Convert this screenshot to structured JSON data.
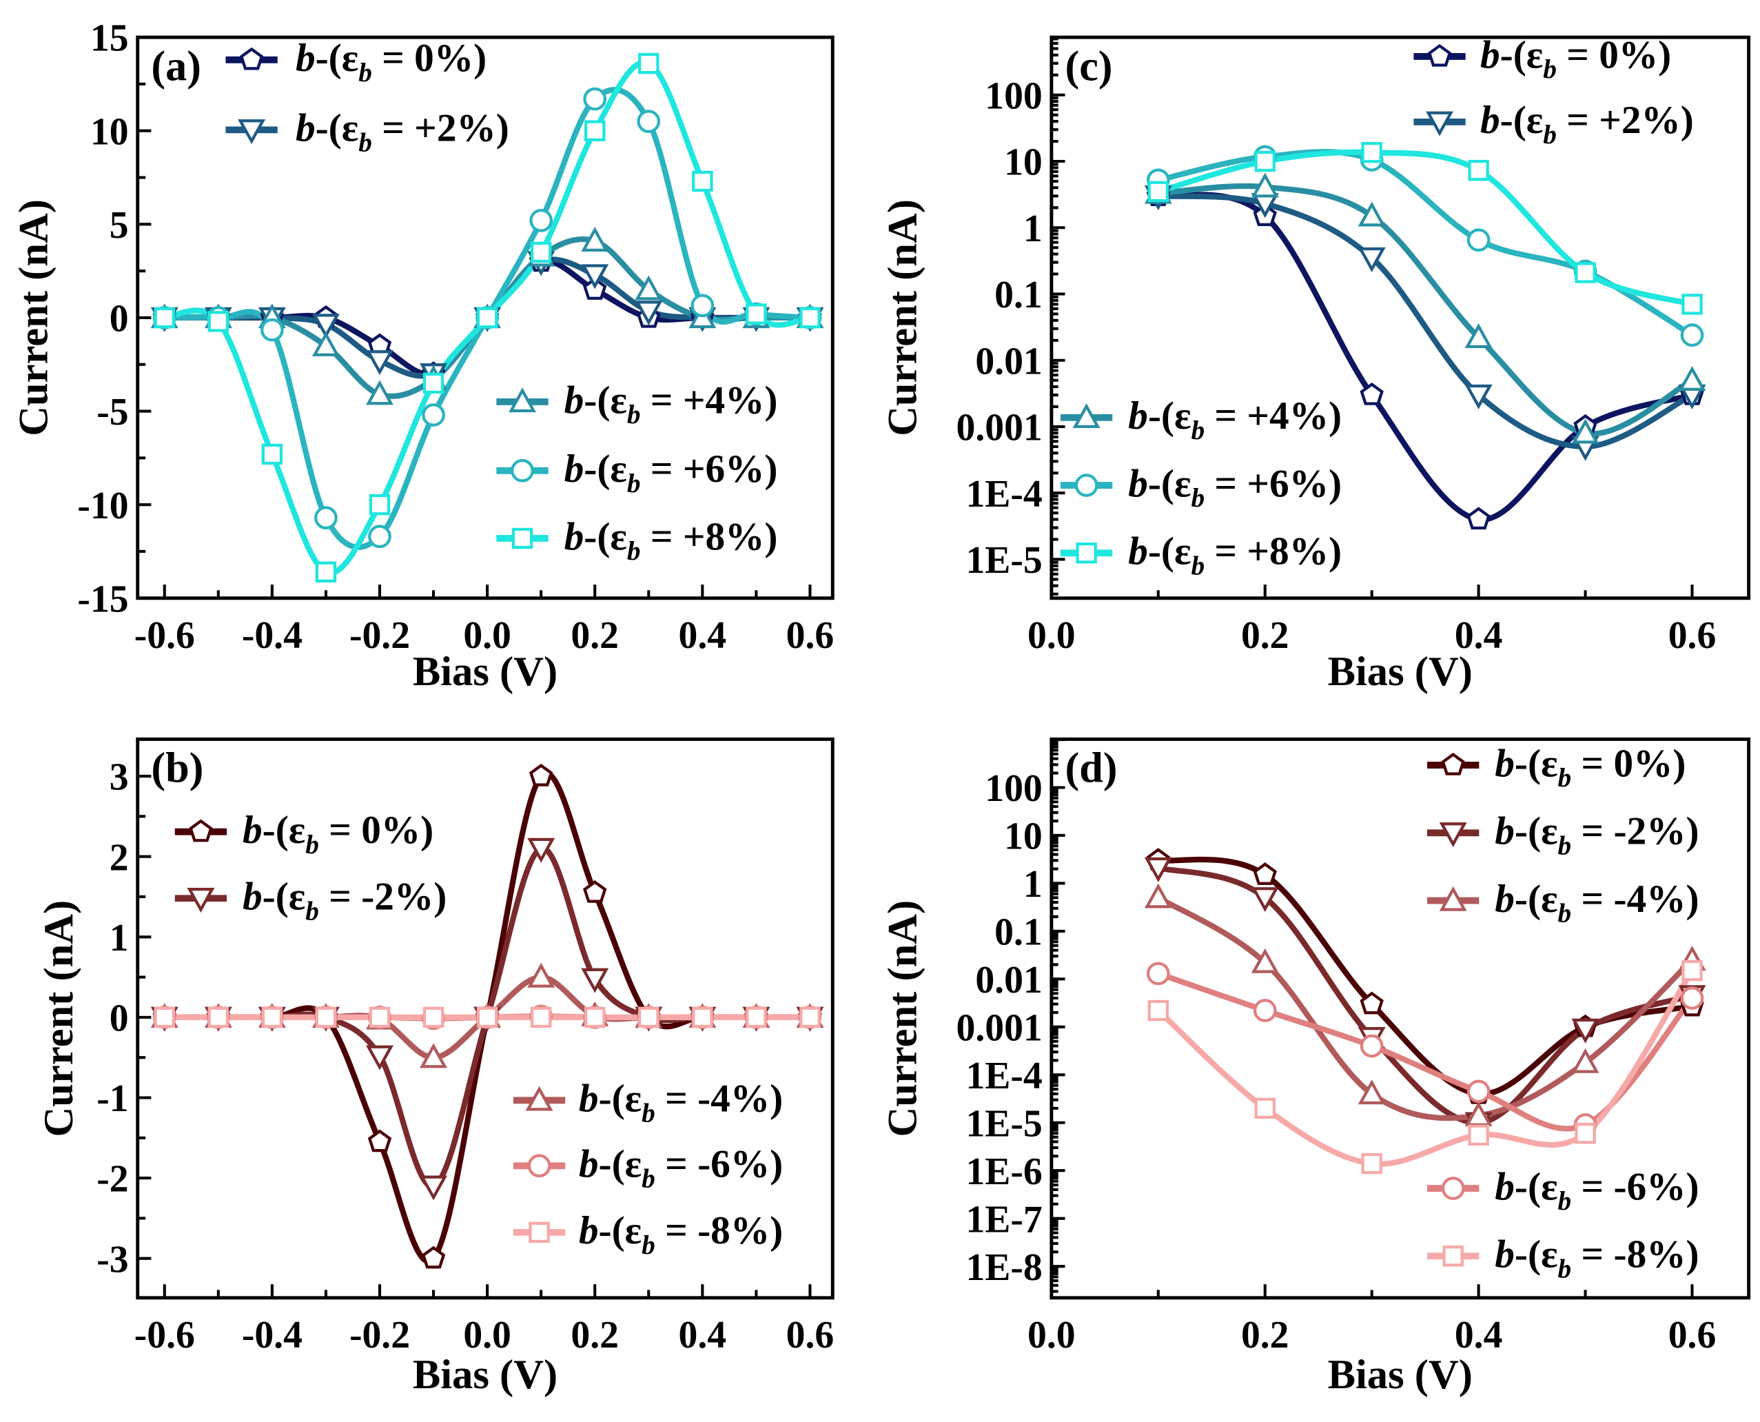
{
  "chart_data": [
    {
      "panel": "(a)",
      "type": "line",
      "xlabel": "Bias (V)",
      "ylabel": "Current (nA)",
      "xscale": "linear",
      "yscale": "linear",
      "xlim": [
        -0.65,
        0.642
      ],
      "ylim": [
        -15,
        15
      ],
      "xticks": [
        -0.6,
        -0.4,
        -0.2,
        0.0,
        0.2,
        0.4,
        0.6
      ],
      "xtick_labels": [
        "-0.6",
        "-0.4",
        "-0.2",
        "0.0",
        "0.2",
        "0.4",
        "0.6"
      ],
      "yticks": [
        15,
        10,
        5,
        0,
        -5,
        -10,
        -15
      ],
      "ytick_labels": [
        "15",
        "10",
        "5",
        "0",
        "-5",
        "-10",
        "-15"
      ],
      "x": [
        -0.6,
        -0.5,
        -0.4,
        -0.3,
        -0.2,
        -0.1,
        0.0,
        0.1,
        0.2,
        0.3,
        0.4,
        0.5,
        0.6
      ],
      "series": [
        {
          "name": "b-(εb = 0%)",
          "color": "#0d1560",
          "marker": "pentagon",
          "values": [
            0,
            0,
            0,
            0,
            -1.5,
            -3,
            0,
            3,
            1.5,
            0,
            0,
            0,
            0
          ]
        },
        {
          "name": "b-(εb = +2%)",
          "color": "#1d5a84",
          "marker": "triangle-down",
          "values": [
            0,
            0,
            0,
            -0.35,
            -2.3,
            -3,
            0,
            3,
            2.3,
            0.35,
            0,
            0,
            0
          ]
        },
        {
          "name": "b-(εb = +4%)",
          "color": "#2a8ea3",
          "marker": "triangle-up",
          "values": [
            0,
            0,
            0,
            -1.5,
            -4.1,
            -3.3,
            0,
            3.3,
            4.1,
            1.5,
            0,
            0,
            0
          ]
        },
        {
          "name": "b-(εb = +6%)",
          "color": "#2ab4bf",
          "marker": "circle",
          "values": [
            0,
            0,
            -0.65,
            -10.7,
            -11.7,
            -5.2,
            0,
            5.2,
            11.7,
            10.5,
            0.65,
            0.2,
            0
          ]
        },
        {
          "name": "b-(εb = +8%)",
          "color": "#1fe6de",
          "marker": "square",
          "values": [
            0,
            -0.2,
            -7.3,
            -13.6,
            -10,
            -3.5,
            0,
            3.5,
            10,
            13.6,
            7.3,
            0.2,
            0
          ]
        }
      ]
    },
    {
      "panel": "(b)",
      "type": "line",
      "xlabel": "Bias (V)",
      "ylabel": "Current (nA)",
      "xscale": "linear",
      "yscale": "linear",
      "xlim": [
        -0.65,
        0.642
      ],
      "ylim": [
        -3.49,
        3.46
      ],
      "xticks": [
        -0.6,
        -0.4,
        -0.2,
        0.0,
        0.2,
        0.4,
        0.6
      ],
      "xtick_labels": [
        "-0.6",
        "-0.4",
        "-0.2",
        "0.0",
        "0.2",
        "0.4",
        "0.6"
      ],
      "yticks": [
        3,
        2,
        1,
        0,
        -1,
        -2,
        -3
      ],
      "ytick_labels": [
        "3",
        "2",
        "1",
        "0",
        "-1",
        "-2",
        "-3"
      ],
      "x": [
        -0.6,
        -0.5,
        -0.4,
        -0.3,
        -0.2,
        -0.1,
        0.0,
        0.1,
        0.2,
        0.3,
        0.4,
        0.5,
        0.6
      ],
      "series": [
        {
          "name": "b-(εb = 0%)",
          "color": "#4a0005",
          "marker": "pentagon",
          "values": [
            0,
            0,
            0,
            0,
            -1.55,
            -3,
            0,
            3,
            1.55,
            0,
            0,
            0,
            0
          ]
        },
        {
          "name": "b-(εb = -2%)",
          "color": "#7a2a2c",
          "marker": "triangle-down",
          "values": [
            0,
            0,
            0,
            0,
            -0.48,
            -2.1,
            0,
            2.1,
            0.48,
            0,
            0,
            0,
            0
          ]
        },
        {
          "name": "b-(εb = -4%)",
          "color": "#b05a5c",
          "marker": "triangle-up",
          "values": [
            0,
            0,
            0,
            0,
            -0.02,
            -0.5,
            0,
            0.5,
            0.02,
            0,
            0,
            0,
            0
          ]
        },
        {
          "name": "b-(εb = -6%)",
          "color": "#e07f80",
          "marker": "circle",
          "values": [
            0,
            0,
            0,
            0,
            0,
            -0.013,
            0,
            0.013,
            0,
            0,
            0,
            0,
            0
          ]
        },
        {
          "name": "b-(εb = -8%)",
          "color": "#f7a9a9",
          "marker": "square",
          "values": [
            0,
            0,
            0,
            0,
            0,
            0,
            0,
            0,
            0,
            0,
            0,
            0,
            0
          ]
        }
      ]
    },
    {
      "panel": "(c)",
      "type": "line",
      "xlabel": "Bias (V)",
      "ylabel": "Current (nA)",
      "xscale": "linear",
      "yscale": "log",
      "xlim": [
        0,
        0.653
      ],
      "ylim": [
        2.6e-06,
        740
      ],
      "xticks": [
        0.0,
        0.2,
        0.4,
        0.6
      ],
      "xtick_labels": [
        "0.0",
        "0.2",
        "0.4",
        "0.6"
      ],
      "yticks": [
        100,
        10,
        1,
        0.1,
        0.01,
        0.001,
        0.0001,
        1e-05
      ],
      "ytick_labels": [
        "100",
        "10",
        "1",
        "0.1",
        "0.01",
        "0.001",
        "1E-4",
        "1E-5"
      ],
      "x": [
        0.1,
        0.2,
        0.3,
        0.4,
        0.5,
        0.6
      ],
      "series": [
        {
          "name": "b-(εb = 0%)",
          "color": "#0d1560",
          "marker": "pentagon",
          "values": [
            3,
            1.5,
            0.003,
            4e-05,
            0.001,
            0.003
          ]
        },
        {
          "name": "b-(εb = +2%)",
          "color": "#1d5a84",
          "marker": "triangle-down",
          "values": [
            3,
            2.3,
            0.35,
            0.003,
            0.0005,
            0.003
          ]
        },
        {
          "name": "b-(εb = +4%)",
          "color": "#2a8ea3",
          "marker": "triangle-up",
          "values": [
            3.3,
            4.1,
            1.5,
            0.022,
            0.0008,
            0.005
          ]
        },
        {
          "name": "b-(εb = +6%)",
          "color": "#2ab4bf",
          "marker": "circle",
          "values": [
            5.2,
            11.7,
            10.5,
            0.65,
            0.22,
            0.024
          ]
        },
        {
          "name": "b-(εb = +8%)",
          "color": "#1fe6de",
          "marker": "square",
          "values": [
            3.5,
            10,
            13.6,
            7.3,
            0.21,
            0.07
          ]
        }
      ]
    },
    {
      "panel": "(d)",
      "type": "line",
      "xlabel": "Bias (V)",
      "ylabel": "Current (nA)",
      "xscale": "linear",
      "yscale": "log",
      "xlim": [
        0,
        0.653
      ],
      "ylim": [
        2.2e-09,
        1020
      ],
      "xticks": [
        0.0,
        0.2,
        0.4,
        0.6
      ],
      "xtick_labels": [
        "0.0",
        "0.2",
        "0.4",
        "0.6"
      ],
      "yticks": [
        100,
        10,
        1,
        0.1,
        0.01,
        0.001,
        0.0001,
        1e-05,
        1e-06,
        1e-07,
        1e-08
      ],
      "ytick_labels": [
        "100",
        "10",
        "1",
        "0.1",
        "0.01",
        "0.001",
        "1E-4",
        "1E-5",
        "1E-6",
        "1E-7",
        "1E-8"
      ],
      "x": [
        0.1,
        0.2,
        0.3,
        0.4,
        0.5,
        0.6
      ],
      "series": [
        {
          "name": "b-(εb = 0%)",
          "color": "#4a0005",
          "marker": "pentagon",
          "values": [
            3,
            1.5,
            0.003,
            4e-05,
            0.001,
            0.0027
          ]
        },
        {
          "name": "b-(εb = -2%)",
          "color": "#7a2a2c",
          "marker": "triangle-down",
          "values": [
            2.1,
            0.5,
            0.0006,
            1e-05,
            0.0009,
            0.0045
          ]
        },
        {
          "name": "b-(εb = -4%)",
          "color": "#b05a5c",
          "marker": "triangle-up",
          "values": [
            0.5,
            0.022,
            4e-05,
            1.4e-05,
            0.00018,
            0.025
          ]
        },
        {
          "name": "b-(εb = -6%)",
          "color": "#e07f80",
          "marker": "circle",
          "values": [
            0.013,
            0.0022,
            0.0004,
            4.5e-05,
            9e-06,
            0.004
          ]
        },
        {
          "name": "b-(εb = -8%)",
          "color": "#f7a9a9",
          "marker": "square",
          "values": [
            0.0022,
            2e-05,
            1.4e-06,
            5.5e-06,
            6e-06,
            0.015
          ]
        }
      ]
    }
  ]
}
